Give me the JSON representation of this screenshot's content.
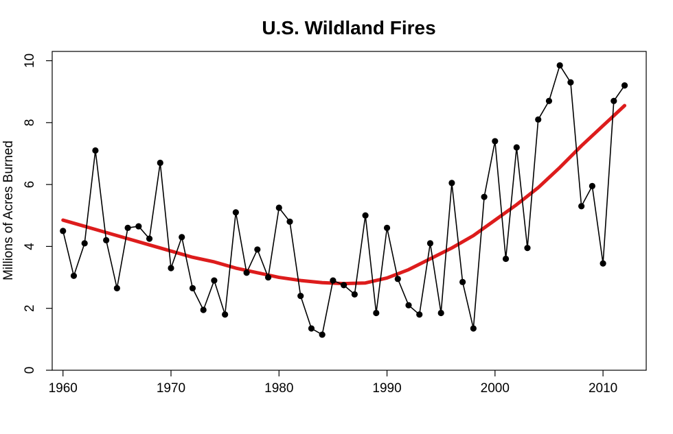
{
  "chart_data": {
    "type": "line",
    "title": "U.S. Wildland Fires",
    "xlabel": "",
    "ylabel": "Millions of Acres Burned",
    "xlim": [
      1959,
      2014
    ],
    "ylim": [
      0,
      10.3
    ],
    "x_ticks": [
      1960,
      1970,
      1980,
      1990,
      2000,
      2010
    ],
    "y_ticks": [
      0,
      2,
      4,
      6,
      8,
      10
    ],
    "grid": false,
    "legend": "none",
    "colors": {
      "data": "#000000",
      "trend": "#dd1c1c",
      "frame": "#000000"
    },
    "series": [
      {
        "style": "black-line-with-points",
        "x": [
          1960,
          1961,
          1962,
          1963,
          1964,
          1965,
          1966,
          1967,
          1968,
          1969,
          1970,
          1971,
          1972,
          1973,
          1974,
          1975,
          1976,
          1977,
          1978,
          1979,
          1980,
          1981,
          1982,
          1983,
          1984,
          1985,
          1986,
          1987,
          1988,
          1989,
          1990,
          1991,
          1992,
          1993,
          1994,
          1995,
          1996,
          1997,
          1998,
          1999,
          2000,
          2001,
          2002,
          2003,
          2004,
          2005,
          2006,
          2007,
          2008,
          2009,
          2010,
          2011,
          2012
        ],
        "y": [
          4.5,
          3.05,
          4.1,
          7.1,
          4.2,
          2.65,
          4.6,
          4.65,
          4.25,
          6.7,
          3.3,
          4.3,
          2.65,
          1.95,
          2.9,
          1.8,
          5.1,
          3.15,
          3.9,
          3.0,
          5.25,
          4.8,
          2.4,
          1.35,
          1.15,
          2.9,
          2.75,
          2.45,
          5.0,
          1.85,
          4.6,
          2.95,
          2.1,
          1.8,
          4.1,
          1.85,
          6.05,
          2.85,
          1.35,
          5.6,
          7.4,
          3.6,
          7.2,
          3.95,
          8.1,
          8.7,
          9.85,
          9.3,
          5.3,
          5.95,
          3.45,
          8.7,
          9.2
        ]
      },
      {
        "style": "red-smooth-trend",
        "x": [
          1960,
          1962,
          1964,
          1966,
          1968,
          1970,
          1972,
          1974,
          1976,
          1978,
          1980,
          1982,
          1984,
          1986,
          1988,
          1990,
          1992,
          1994,
          1996,
          1998,
          2000,
          2002,
          2004,
          2006,
          2008,
          2010,
          2012
        ],
        "y": [
          4.85,
          4.65,
          4.45,
          4.25,
          4.05,
          3.85,
          3.65,
          3.5,
          3.3,
          3.15,
          3.0,
          2.9,
          2.83,
          2.8,
          2.82,
          2.98,
          3.25,
          3.6,
          3.95,
          4.35,
          4.85,
          5.35,
          5.9,
          6.55,
          7.25,
          7.9,
          8.55
        ]
      }
    ]
  }
}
